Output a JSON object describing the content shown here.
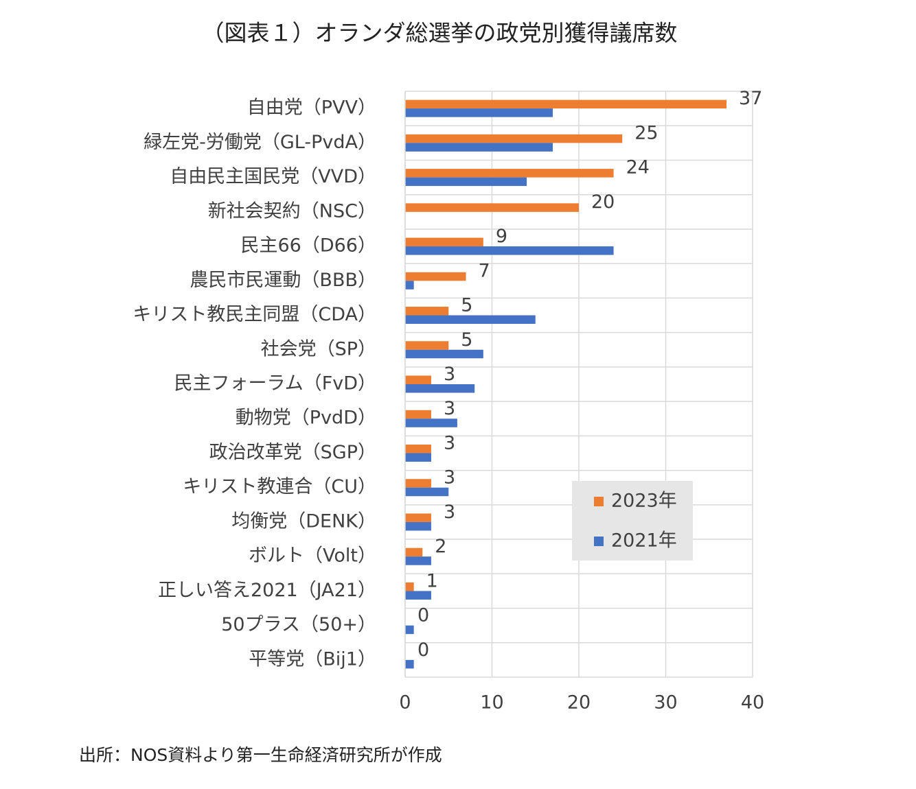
{
  "chart_data": {
    "type": "hbar",
    "title": "（図表１）オランダ総選挙の政党別獲得議席数",
    "categories": [
      "自由党（PVV）",
      "緑左党-労働党（GL-PvdA）",
      "自由民主国民党（VVD）",
      "新社会契約（NSC）",
      "民主66（D66）",
      "農民市民運動（BBB）",
      "キリスト教民主同盟（CDA）",
      "社会党（SP）",
      "民主フォーラム（FvD）",
      "動物党（PvdD）",
      "政治改革党（SGP）",
      "キリスト教連合（CU）",
      "均衡党（DENK）",
      "ボルト（Volt）",
      "正しい答え2021（JA21）",
      "50プラス（50+）",
      "平等党（Bij1）"
    ],
    "series": [
      {
        "name": "2023年",
        "color": "#ed7d31",
        "values": [
          37,
          25,
          24,
          20,
          9,
          7,
          5,
          5,
          3,
          3,
          3,
          3,
          3,
          2,
          1,
          0,
          0
        ],
        "data_labels": true
      },
      {
        "name": "2021年",
        "color": "#4472c4",
        "values": [
          17,
          17,
          14,
          null,
          24,
          1,
          15,
          9,
          8,
          6,
          3,
          5,
          3,
          3,
          3,
          1,
          1
        ],
        "data_labels": false
      }
    ],
    "xlim": [
      0,
      40
    ],
    "xticks": [
      0,
      10,
      20,
      30,
      40
    ],
    "grid": true,
    "legend": "lower-right",
    "source": "出所：NOS資料より第一生命経済研究所が作成"
  }
}
